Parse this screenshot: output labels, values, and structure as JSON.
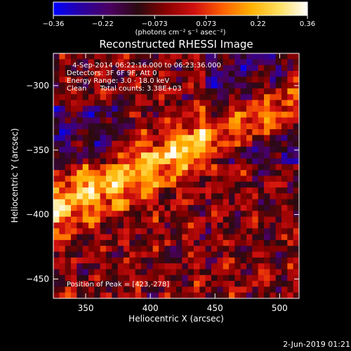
{
  "chart_data": {
    "type": "heatmap",
    "title": "Reconstructed RHESSI Image",
    "xlabel": "Heliocentric X (arcsec)",
    "ylabel": "Heliocentric Y (arcsec)",
    "xlim": [
      325,
      515
    ],
    "ylim": [
      -465,
      -275
    ],
    "x_ticks": [
      350,
      400,
      450,
      500
    ],
    "y_ticks": [
      -300,
      -350,
      -400,
      -450
    ],
    "x_tick_labels": [
      "350",
      "400",
      "450",
      "500"
    ],
    "y_tick_labels": [
      "−300",
      "−350",
      "−400",
      "−450"
    ],
    "colorbar": {
      "min": -0.36,
      "max": 0.36,
      "ticks": [
        -0.36,
        -0.22,
        -0.073,
        0.073,
        0.22,
        0.36
      ],
      "tick_labels": [
        "−0.36",
        "−0.22",
        "−0.073",
        "0.073",
        "0.22",
        "0.36"
      ],
      "unit_label": "(photons cm⁻² s⁻¹ asec⁻²)",
      "colors": [
        "#0000ff",
        "#2a00a0",
        "#4b0060",
        "#2a0a10",
        "#8a0000",
        "#d01010",
        "#ff6000",
        "#ffb000",
        "#ffe060",
        "#ffffff"
      ]
    },
    "annotations": [
      "4-Sep-2014 06:22:16.000 to 06:23:36.000",
      "Detectors: 3F 6F 9F, Att 0",
      "Energy Range: 3.0 - 18.0 keV",
      "Clean      Total counts: 3.38E+03"
    ],
    "peak_label": "Position of Peak = [423,-278]",
    "peak": [
      423,
      -278
    ]
  },
  "footer": {
    "date": "2-Jun-2019 01:21"
  }
}
